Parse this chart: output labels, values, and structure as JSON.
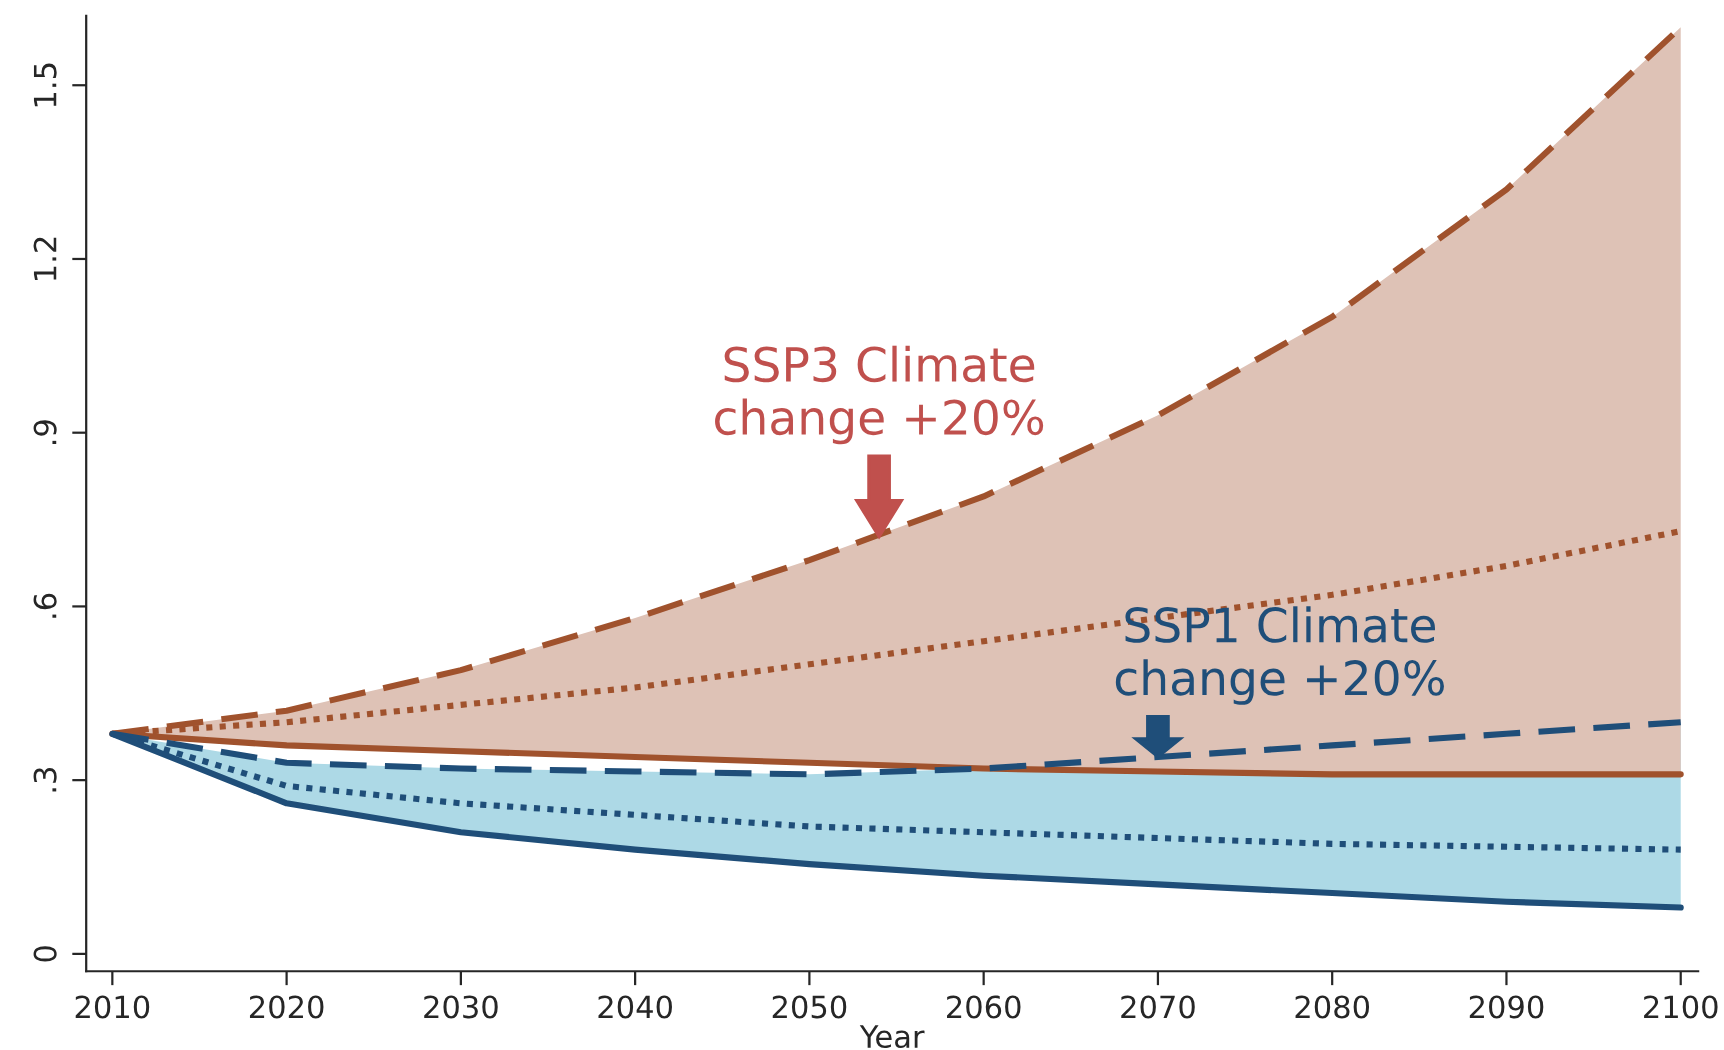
{
  "chart_data": {
    "type": "line",
    "xlabel": "Year",
    "x": [
      2010,
      2020,
      2030,
      2040,
      2050,
      2060,
      2070,
      2080,
      2090,
      2100
    ],
    "series": [
      {
        "color": "#a0522d",
        "line_style": "dashed",
        "values": [
          0.38,
          0.42,
          0.49,
          0.58,
          0.68,
          0.79,
          0.93,
          1.1,
          1.32,
          1.6
        ]
      },
      {
        "color": "#a0522d",
        "line_style": "dotted",
        "values": [
          0.38,
          0.4,
          0.43,
          0.46,
          0.5,
          0.54,
          0.58,
          0.62,
          0.67,
          0.73
        ],
        "lower": [
          0.38,
          0.36,
          0.35,
          0.34,
          0.33,
          0.32,
          0.315,
          0.31,
          0.31,
          0.31
        ],
        "upper": [
          0.38,
          0.42,
          0.49,
          0.58,
          0.68,
          0.79,
          0.93,
          1.1,
          1.32,
          1.6
        ]
      },
      {
        "color": "#a0522d",
        "line_style": "solid",
        "values": [
          0.38,
          0.36,
          0.35,
          0.34,
          0.33,
          0.32,
          0.315,
          0.31,
          0.31,
          0.31
        ]
      },
      {
        "color": "#1f4e79",
        "line_style": "dashed",
        "values": [
          0.38,
          0.33,
          0.32,
          0.315,
          0.31,
          0.32,
          0.34,
          0.36,
          0.38,
          0.4
        ]
      },
      {
        "color": "#1f4e79",
        "line_style": "dotted",
        "values": [
          0.38,
          0.29,
          0.26,
          0.24,
          0.22,
          0.21,
          0.2,
          0.19,
          0.185,
          0.18
        ],
        "lower": [
          0.38,
          0.26,
          0.21,
          0.18,
          0.155,
          0.135,
          0.12,
          0.105,
          0.09,
          0.08
        ],
        "upper": [
          0.38,
          0.33,
          0.32,
          0.315,
          0.31,
          0.32,
          0.34,
          0.36,
          0.38,
          0.4
        ]
      },
      {
        "color": "#1f4e79",
        "line_style": "solid",
        "values": [
          0.38,
          0.26,
          0.21,
          0.18,
          0.155,
          0.135,
          0.12,
          0.105,
          0.09,
          0.08
        ]
      }
    ],
    "xlim": [
      2008.5,
      2101
    ],
    "xticks": [
      2010,
      2020,
      2030,
      2040,
      2050,
      2060,
      2070,
      2080,
      2090,
      2100
    ],
    "ylim": [
      -0.03,
      1.62
    ],
    "yticks": [
      0,
      {
        "value": 0.3,
        "label": ".3"
      },
      {
        "value": 0.6,
        "label": ".6"
      },
      {
        "value": 0.9,
        "label": ".9"
      },
      1.2,
      1.5
    ],
    "grid": false,
    "legend": false,
    "annotations": [
      {
        "text": "SSP3 Climate\nchange +20%",
        "x": 2054,
        "y": 0.72
      },
      {
        "text": "SSP1 Climate\nchange +20%",
        "x": 2070,
        "y": 0.34
      }
    ]
  }
}
